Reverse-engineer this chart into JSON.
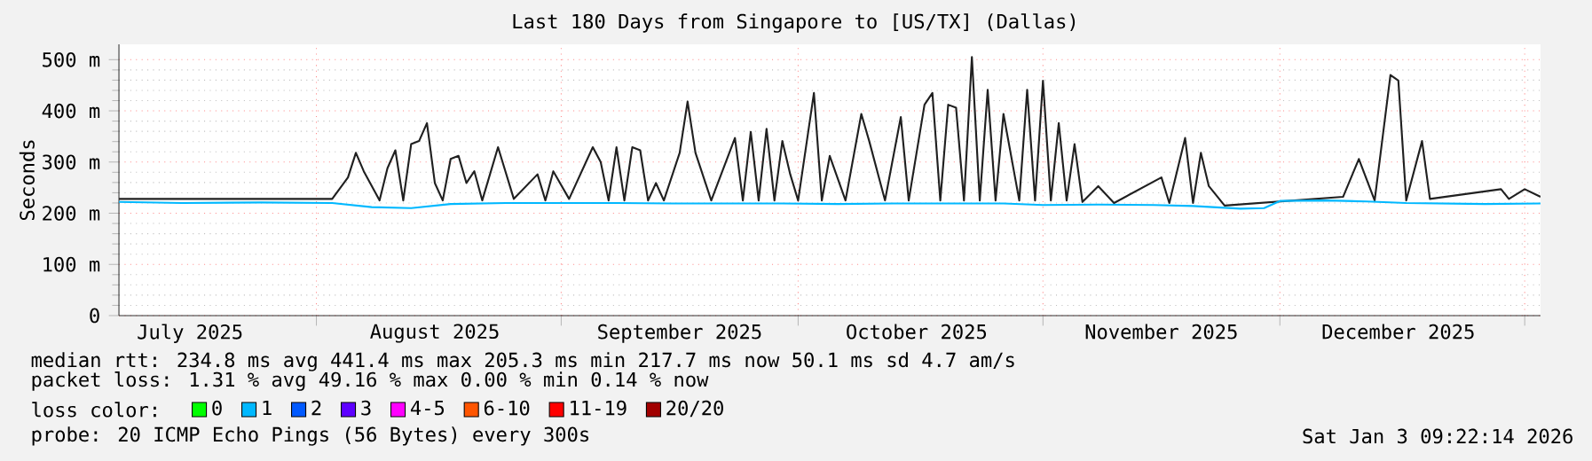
{
  "chart_data": {
    "type": "line",
    "title": "Last 180 Days from Singapore to [US/TX] (Dallas)",
    "ylabel": "Seconds",
    "xlim": [
      "2025-07-07",
      "2026-01-03"
    ],
    "ylim": [
      0,
      530
    ],
    "xticks": [
      {
        "value": "2025-08-01",
        "label": null
      },
      {
        "value": "2025-09-01",
        "label": null
      },
      {
        "value": "2025-10-01",
        "label": null
      },
      {
        "value": "2025-11-01",
        "label": null
      },
      {
        "value": "2025-12-01",
        "label": null
      },
      {
        "value": "2026-01-01",
        "label": null
      },
      {
        "value": "2025-07-16",
        "label": "July 2025"
      },
      {
        "value": "2025-08-16",
        "label": "August 2025"
      },
      {
        "value": "2025-09-16",
        "label": "September 2025"
      },
      {
        "value": "2025-10-16",
        "label": "October 2025"
      },
      {
        "value": "2025-11-16",
        "label": "November 2025"
      },
      {
        "value": "2025-12-16",
        "label": "December 2025"
      }
    ],
    "yticks": [
      0,
      {
        "value": 100,
        "label": "100 m"
      },
      {
        "value": 200,
        "label": "200 m"
      },
      {
        "value": 300,
        "label": "300 m"
      },
      {
        "value": 400,
        "label": "400 m"
      },
      {
        "value": 500,
        "label": "500 m"
      }
    ],
    "grid": true,
    "marker": "none",
    "legend": "bottom",
    "legend_title": "loss color:",
    "series": [
      {
        "color": "#202020",
        "x": [
          "2025-07-07",
          "2025-08-03",
          "2025-08-05",
          "2025-08-06",
          "2025-08-07",
          "2025-08-09",
          "2025-08-10",
          "2025-08-11",
          "2025-08-12",
          "2025-08-13",
          "2025-08-14",
          "2025-08-15",
          "2025-08-16",
          "2025-08-17",
          "2025-08-18",
          "2025-08-19",
          "2025-08-20",
          "2025-08-21",
          "2025-08-22",
          "2025-08-24",
          "2025-08-26",
          "2025-08-29",
          "2025-08-30",
          "2025-08-31",
          "2025-09-02",
          "2025-09-05",
          "2025-09-06",
          "2025-09-07",
          "2025-09-08",
          "2025-09-09",
          "2025-09-10",
          "2025-09-11",
          "2025-09-12",
          "2025-09-13",
          "2025-09-14",
          "2025-09-16",
          "2025-09-17",
          "2025-09-18",
          "2025-09-20",
          "2025-09-23",
          "2025-09-24",
          "2025-09-25",
          "2025-09-26",
          "2025-09-27",
          "2025-09-28",
          "2025-09-29",
          "2025-09-30",
          "2025-10-01",
          "2025-10-03",
          "2025-10-04",
          "2025-10-05",
          "2025-10-07",
          "2025-10-09",
          "2025-10-10",
          "2025-10-12",
          "2025-10-14",
          "2025-10-15",
          "2025-10-17",
          "2025-10-18",
          "2025-10-19",
          "2025-10-20",
          "2025-10-21",
          "2025-10-22",
          "2025-10-23",
          "2025-10-24",
          "2025-10-25",
          "2025-10-26",
          "2025-10-27",
          "2025-10-29",
          "2025-10-30",
          "2025-10-31",
          "2025-11-01",
          "2025-11-02",
          "2025-11-03",
          "2025-11-04",
          "2025-11-05",
          "2025-11-06",
          "2025-11-08",
          "2025-11-10",
          "2025-11-16",
          "2025-11-17",
          "2025-11-19",
          "2025-11-20",
          "2025-11-21",
          "2025-11-22",
          "2025-11-24",
          "2025-12-09",
          "2025-12-11",
          "2025-12-13",
          "2025-12-15",
          "2025-12-16",
          "2025-12-17",
          "2025-12-19",
          "2025-12-20",
          "2025-12-29",
          "2025-12-30",
          "2026-01-01",
          "2026-01-03"
        ],
        "values": [
          228,
          228,
          270,
          318,
          282,
          225,
          288,
          323,
          225,
          335,
          341,
          376,
          259,
          225,
          306,
          312,
          259,
          282,
          225,
          329,
          228,
          276,
          225,
          282,
          228,
          329,
          300,
          225,
          329,
          225,
          329,
          323,
          225,
          259,
          225,
          318,
          418,
          318,
          225,
          347,
          225,
          359,
          225,
          365,
          225,
          341,
          276,
          225,
          435,
          225,
          312,
          225,
          394,
          341,
          225,
          388,
          225,
          412,
          435,
          225,
          412,
          406,
          225,
          505,
          225,
          441,
          225,
          394,
          225,
          441,
          225,
          459,
          225,
          376,
          225,
          335,
          222,
          253,
          220,
          270,
          220,
          347,
          220,
          318,
          253,
          215,
          232,
          306,
          225,
          470,
          459,
          225,
          341,
          228,
          247,
          228,
          247,
          232
        ]
      },
      {
        "color": "#00b8ff",
        "x": [
          "2025-07-07",
          "2025-07-15",
          "2025-07-25",
          "2025-08-03",
          "2025-08-08",
          "2025-08-13",
          "2025-08-18",
          "2025-08-25",
          "2025-09-01",
          "2025-09-08",
          "2025-09-15",
          "2025-09-22",
          "2025-09-29",
          "2025-10-06",
          "2025-10-13",
          "2025-10-20",
          "2025-10-27",
          "2025-11-01",
          "2025-11-08",
          "2025-11-15",
          "2025-11-20",
          "2025-11-26",
          "2025-11-29",
          "2025-12-01",
          "2025-12-07",
          "2025-12-12",
          "2025-12-17",
          "2025-12-22",
          "2025-12-27",
          "2026-01-03"
        ],
        "values": [
          222,
          220,
          221,
          220,
          212,
          210,
          218,
          220,
          220,
          220,
          219,
          219,
          219,
          218,
          219,
          219,
          219,
          216,
          217,
          216,
          214,
          209,
          210,
          224,
          225,
          223,
          220,
          219,
          218,
          219
        ]
      },
      {
        "name": "0",
        "color": "#00ff00"
      },
      {
        "name": "1",
        "color": "#00b8ff"
      },
      {
        "name": "2",
        "color": "#0059ff"
      },
      {
        "name": "3",
        "color": "#5e00ff"
      },
      {
        "name": "4-5",
        "color": "#ff00ff"
      },
      {
        "name": "6-10",
        "color": "#ff5500"
      },
      {
        "name": "11-19",
        "color": "#ff0000"
      },
      {
        "name": "20/20",
        "color": "#a10000"
      }
    ],
    "annotations": [
      "median rtt:  234.8 ms avg  441.4 ms max  205.3 ms min  217.7 ms now  50.1 ms sd  4.7   am/s",
      "packet loss: 1.31 % avg  49.16 % max  0.00 % min  0.14 % now",
      "probe:       20 ICMP Echo Pings (56 Bytes) every 300s",
      "Sat Jan  3 09:22:14 2026"
    ]
  }
}
